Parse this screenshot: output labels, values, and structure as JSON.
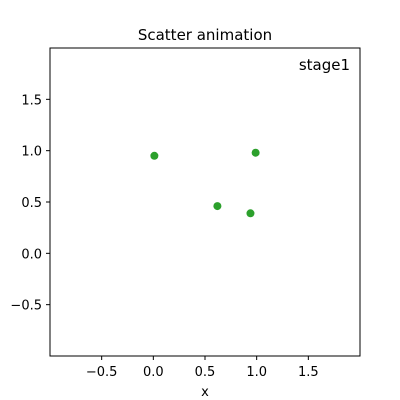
{
  "chart_data": {
    "type": "scatter",
    "title": "Scatter animation",
    "xlabel": "x",
    "ylabel": "",
    "annotation": "stage1",
    "xlim": [
      -1.0,
      2.0
    ],
    "ylim": [
      -1.0,
      2.0
    ],
    "xticks": [
      -0.5,
      0.0,
      0.5,
      1.0,
      1.5
    ],
    "xtick_labels": [
      "−0.5",
      "0.0",
      "0.5",
      "1.0",
      "1.5"
    ],
    "yticks": [
      -0.5,
      0.0,
      0.5,
      1.0,
      1.5
    ],
    "ytick_labels": [
      "−0.5",
      "0.0",
      "0.5",
      "1.0",
      "1.5"
    ],
    "grid": false,
    "marker_color": "#2ca02c",
    "series": [
      {
        "points": [
          {
            "x": 0.01,
            "y": 0.95
          },
          {
            "x": 0.99,
            "y": 0.98
          },
          {
            "x": 0.62,
            "y": 0.46
          },
          {
            "x": 0.94,
            "y": 0.39
          }
        ]
      }
    ]
  }
}
